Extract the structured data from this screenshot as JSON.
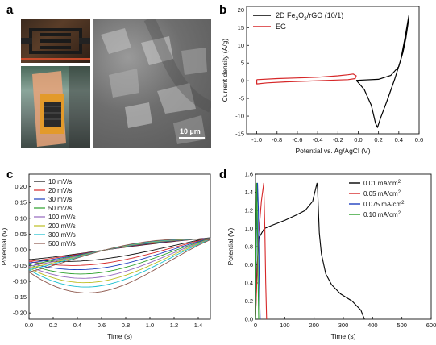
{
  "panel_labels": [
    "a",
    "b",
    "c",
    "d"
  ],
  "panel_a": {
    "scale_bar": "10 µm"
  },
  "chart_data": [
    {
      "id": "b",
      "type": "line",
      "xlabel": "Potential vs. Ag/AgCl (V)",
      "ylabel": "Current density (A/g)",
      "xlim": [
        -1.1,
        0.6
      ],
      "ylim": [
        -15,
        21
      ],
      "xticks": [
        -1.0,
        -0.8,
        -0.6,
        -0.4,
        -0.2,
        0.0,
        0.2,
        0.4,
        0.6
      ],
      "yticks": [
        -15,
        -10,
        -5,
        0,
        5,
        10,
        15,
        20
      ],
      "legend_position": "top-left",
      "series": [
        {
          "name": "2D Fe2O3/rGO (10/1)",
          "label_base": "2D Fe",
          "label_sub1": "2",
          "label_mid": "O",
          "label_sub2": "3",
          "label_tail": "/rGO (10/1)",
          "color": "#000000",
          "x": [
            -0.02,
            0.2,
            0.32,
            0.4,
            0.44,
            0.47,
            0.49,
            0.5,
            0.49,
            0.46,
            0.42,
            0.36,
            0.28,
            0.22,
            0.19,
            0.17,
            0.13,
            0.06,
            0.0,
            -0.02
          ],
          "y": [
            0.1,
            0.4,
            1.5,
            4.0,
            8.0,
            12.0,
            16.0,
            18.5,
            17.0,
            12.0,
            6.0,
            0.5,
            -6.0,
            -10.5,
            -13.2,
            -12.0,
            -7.0,
            -2.5,
            -0.5,
            0.1
          ]
        },
        {
          "name": "EG",
          "color": "#d62728",
          "x": [
            -1.0,
            -0.8,
            -0.6,
            -0.4,
            -0.2,
            -0.1,
            -0.05,
            -0.02,
            -0.03,
            -0.1,
            -0.3,
            -0.5,
            -0.7,
            -0.9,
            -1.0,
            -1.0
          ],
          "y": [
            0.3,
            0.6,
            0.8,
            1.0,
            1.4,
            1.7,
            1.9,
            1.4,
            0.6,
            0.3,
            0.1,
            -0.1,
            -0.3,
            -0.6,
            -0.9,
            0.3
          ]
        }
      ]
    },
    {
      "id": "c",
      "type": "line",
      "xlabel": "Time (s)",
      "ylabel": "Potential (V)",
      "xlim": [
        0.0,
        1.5
      ],
      "ylim": [
        -0.22,
        0.24
      ],
      "xticks": [
        0.0,
        0.2,
        0.4,
        0.6,
        0.8,
        1.0,
        1.2,
        1.4
      ],
      "yticks": [
        -0.2,
        -0.15,
        -0.1,
        -0.05,
        0.0,
        0.05,
        0.1,
        0.15,
        0.2
      ],
      "legend_position": "top-left",
      "series": [
        {
          "name": "10 mV/s",
          "color": "#111111",
          "amp": 0.03
        },
        {
          "name": "20 mV/s",
          "color": "#d62728",
          "amp": 0.045
        },
        {
          "name": "30 mV/s",
          "color": "#1f3fbf",
          "amp": 0.06
        },
        {
          "name": "50 mV/s",
          "color": "#2ca02c",
          "amp": 0.075
        },
        {
          "name": "100 mV/s",
          "color": "#9467bd",
          "amp": 0.09
        },
        {
          "name": "200 mV/s",
          "color": "#bcbd22",
          "amp": 0.105
        },
        {
          "name": "300 mV/s",
          "color": "#17becf",
          "amp": 0.12
        },
        {
          "name": "500 mV/s",
          "color": "#8c564b",
          "amp": 0.14
        }
      ]
    },
    {
      "id": "d",
      "type": "line",
      "xlabel": "Time (s)",
      "ylabel": "Potential (V)",
      "xlim": [
        0,
        600
      ],
      "ylim": [
        0.0,
        1.6
      ],
      "xticks": [
        0,
        100,
        200,
        300,
        400,
        500,
        600
      ],
      "yticks": [
        0.0,
        0.2,
        0.4,
        0.6,
        0.8,
        1.0,
        1.2,
        1.4,
        1.6
      ],
      "legend_position": "top-right",
      "unit_base": "mA/cm",
      "unit_sup": "2",
      "series": [
        {
          "name": "0.01 mA/cm2",
          "value": "0.01",
          "color": "#000000",
          "x": [
            0,
            5,
            12,
            30,
            60,
            100,
            140,
            170,
            195,
            210,
            212,
            218,
            225,
            240,
            260,
            290,
            330,
            360,
            372
          ],
          "y": [
            0.0,
            0.55,
            0.9,
            1.0,
            1.04,
            1.09,
            1.15,
            1.2,
            1.3,
            1.5,
            1.45,
            0.95,
            0.72,
            0.5,
            0.38,
            0.28,
            0.2,
            0.1,
            0.0
          ]
        },
        {
          "name": "0.05 mA/cm2",
          "value": "0.05",
          "color": "#d62728",
          "x": [
            0,
            10,
            20,
            28,
            32,
            35,
            38
          ],
          "y": [
            0.0,
            0.9,
            1.3,
            1.5,
            1.0,
            0.4,
            0.0
          ]
        },
        {
          "name": "0.075 mA/cm2",
          "value": "0.075",
          "color": "#1f3fbf",
          "x": [
            0,
            3,
            7,
            10,
            13,
            16
          ],
          "y": [
            0.0,
            0.9,
            1.5,
            1.2,
            0.4,
            0.0
          ]
        },
        {
          "name": "0.10 mA/cm2",
          "value": "0.10",
          "color": "#2ca02c",
          "x": [
            0,
            2,
            4,
            6,
            9,
            11
          ],
          "y": [
            0.0,
            0.9,
            1.5,
            1.2,
            0.4,
            0.0
          ]
        }
      ]
    }
  ]
}
